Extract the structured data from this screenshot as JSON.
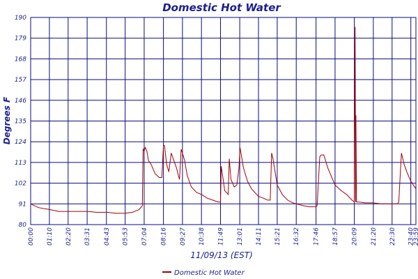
{
  "chart_data": {
    "type": "line",
    "title": "Domestic Hot Water",
    "xlabel": "11/09/13 (EST)",
    "ylabel": "Degrees F",
    "ylim": [
      80,
      190
    ],
    "yticks": [
      "80",
      "91",
      "102",
      "113",
      "124",
      "135",
      "146",
      "157",
      "168",
      "179",
      "190"
    ],
    "xlim": [
      "00:00",
      "23:59"
    ],
    "xticks": [
      "00:00",
      "01:10",
      "02:20",
      "03:31",
      "04:43",
      "05:53",
      "07:04",
      "08:16",
      "09:27",
      "10:38",
      "11:49",
      "13:01",
      "14:11",
      "15:21",
      "16:32",
      "17:46",
      "18:57",
      "20:09",
      "21:20",
      "22:30",
      "23:40",
      "23:59"
    ],
    "grid": true,
    "legend_position": "bottom-center",
    "series_color": "#a00000",
    "grid_color": "#0a0a80",
    "text_color": "#1a1f8c",
    "series": [
      {
        "name": "Domestic Hot Water",
        "x": [
          "00:00",
          "00:30",
          "01:10",
          "01:45",
          "02:20",
          "02:50",
          "03:31",
          "04:05",
          "04:43",
          "05:20",
          "05:53",
          "06:20",
          "06:45",
          "06:57",
          "07:00",
          "07:04",
          "07:08",
          "07:14",
          "07:20",
          "07:30",
          "07:45",
          "08:00",
          "08:10",
          "08:16",
          "08:20",
          "08:28",
          "08:36",
          "08:45",
          "08:55",
          "09:05",
          "09:12",
          "09:16",
          "09:22",
          "09:27",
          "09:35",
          "09:45",
          "10:00",
          "10:20",
          "10:38",
          "11:00",
          "11:20",
          "11:40",
          "11:49",
          "11:52",
          "12:05",
          "12:18",
          "12:22",
          "12:28",
          "12:40",
          "12:50",
          "12:58",
          "13:02",
          "13:15",
          "13:30",
          "13:45",
          "14:11",
          "14:30",
          "14:45",
          "14:55",
          "15:00",
          "15:05",
          "15:21",
          "15:40",
          "16:00",
          "16:20",
          "16:32",
          "17:00",
          "17:20",
          "17:40",
          "17:46",
          "17:50",
          "18:00",
          "18:05",
          "18:15",
          "18:30",
          "18:57",
          "19:20",
          "19:40",
          "20:00",
          "20:09",
          "20:12",
          "20:14",
          "20:15",
          "20:17",
          "20:25",
          "20:50",
          "21:20",
          "21:50",
          "22:10",
          "22:30",
          "22:50",
          "22:55",
          "23:05",
          "23:15",
          "23:25",
          "23:40",
          "23:59"
        ],
        "y": [
          91,
          89,
          88,
          87,
          87,
          87,
          87,
          86.5,
          86.5,
          86,
          86,
          86.5,
          88,
          90,
          120,
          119,
          121,
          119,
          114,
          112,
          107,
          105,
          105,
          122,
          122,
          112,
          108,
          118,
          114,
          110,
          106,
          104,
          120,
          118,
          114,
          106,
          100,
          97,
          96,
          94,
          93,
          92,
          92,
          111,
          98,
          96,
          115,
          104,
          100,
          101,
          110,
          121,
          110,
          103,
          99,
          95,
          94,
          93,
          93,
          118,
          115,
          101,
          96,
          93,
          91.5,
          91,
          90,
          89.5,
          89.5,
          89.5,
          90,
          116,
          117,
          117,
          110,
          101,
          98,
          96,
          93,
          92,
          185,
          92,
          138,
          92,
          92,
          91.5,
          91.5,
          91,
          91,
          91,
          91,
          92,
          118,
          112,
          108,
          103,
          99
        ]
      }
    ]
  }
}
